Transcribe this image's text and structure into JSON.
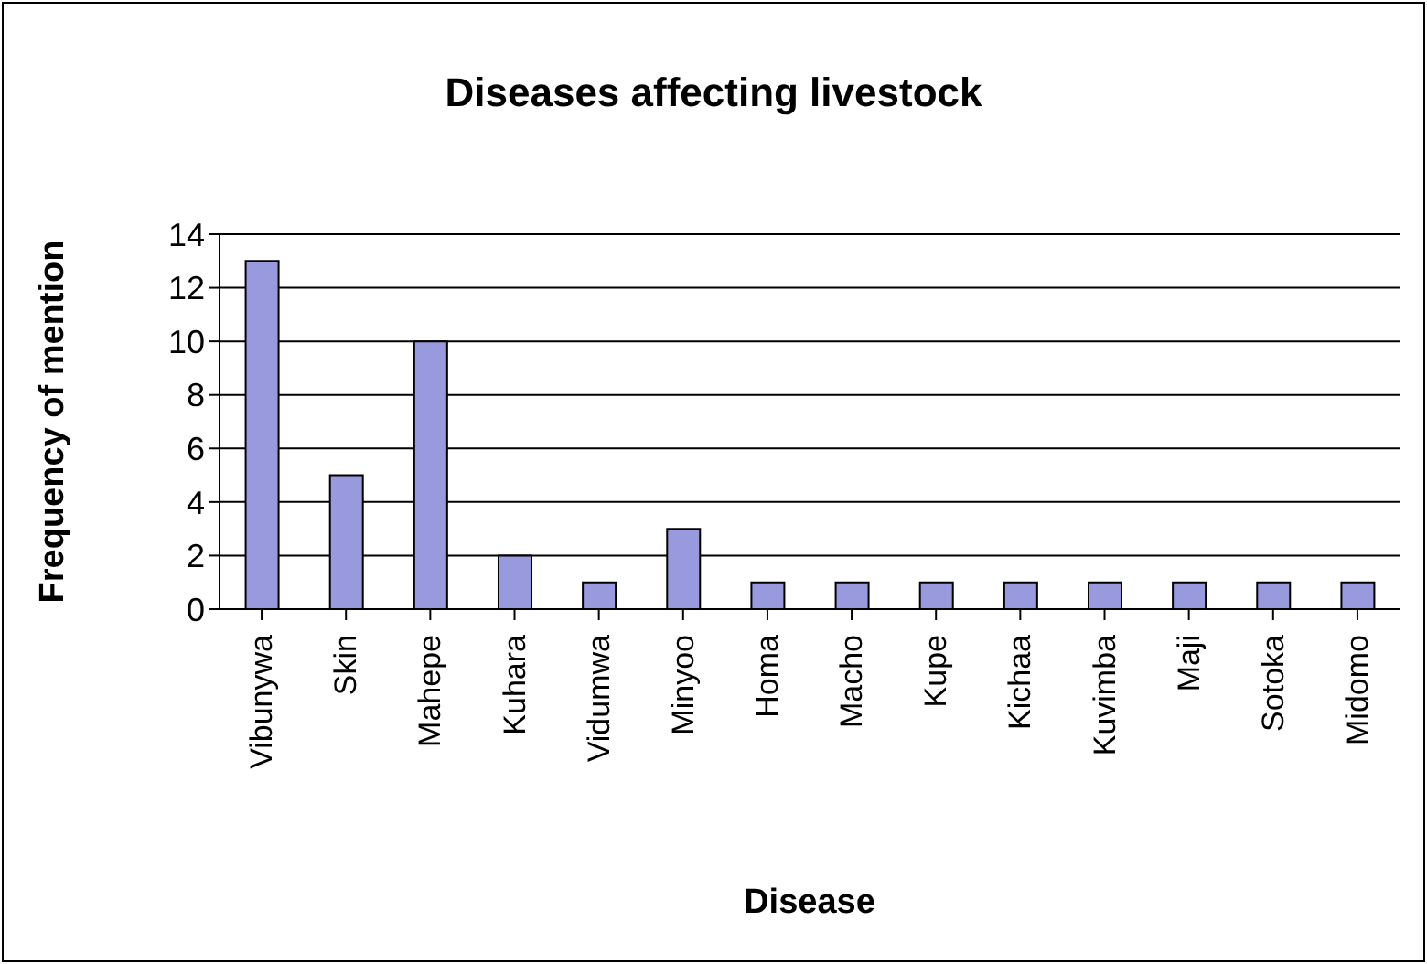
{
  "chart_data": {
    "type": "bar",
    "title": "Diseases affecting livestock",
    "xlabel": "Disease",
    "ylabel": "Frequency of mention",
    "categories": [
      "Vibunywa",
      "Skin",
      "Mahepe",
      "Kuhara",
      "Vidumwa",
      "Minyoo",
      "Homa",
      "Macho",
      "Kupe",
      "Kichaa",
      "Kuvimba",
      "Maji",
      "Sotoka",
      "Midomo"
    ],
    "values": [
      13,
      5,
      10,
      2,
      1,
      3,
      1,
      1,
      1,
      1,
      1,
      1,
      1,
      1
    ],
    "color": "#9999dd",
    "ylim": [
      0,
      14
    ],
    "yticks": [
      0,
      2,
      4,
      6,
      8,
      10,
      12,
      14
    ],
    "grid": "y",
    "legend": false
  }
}
